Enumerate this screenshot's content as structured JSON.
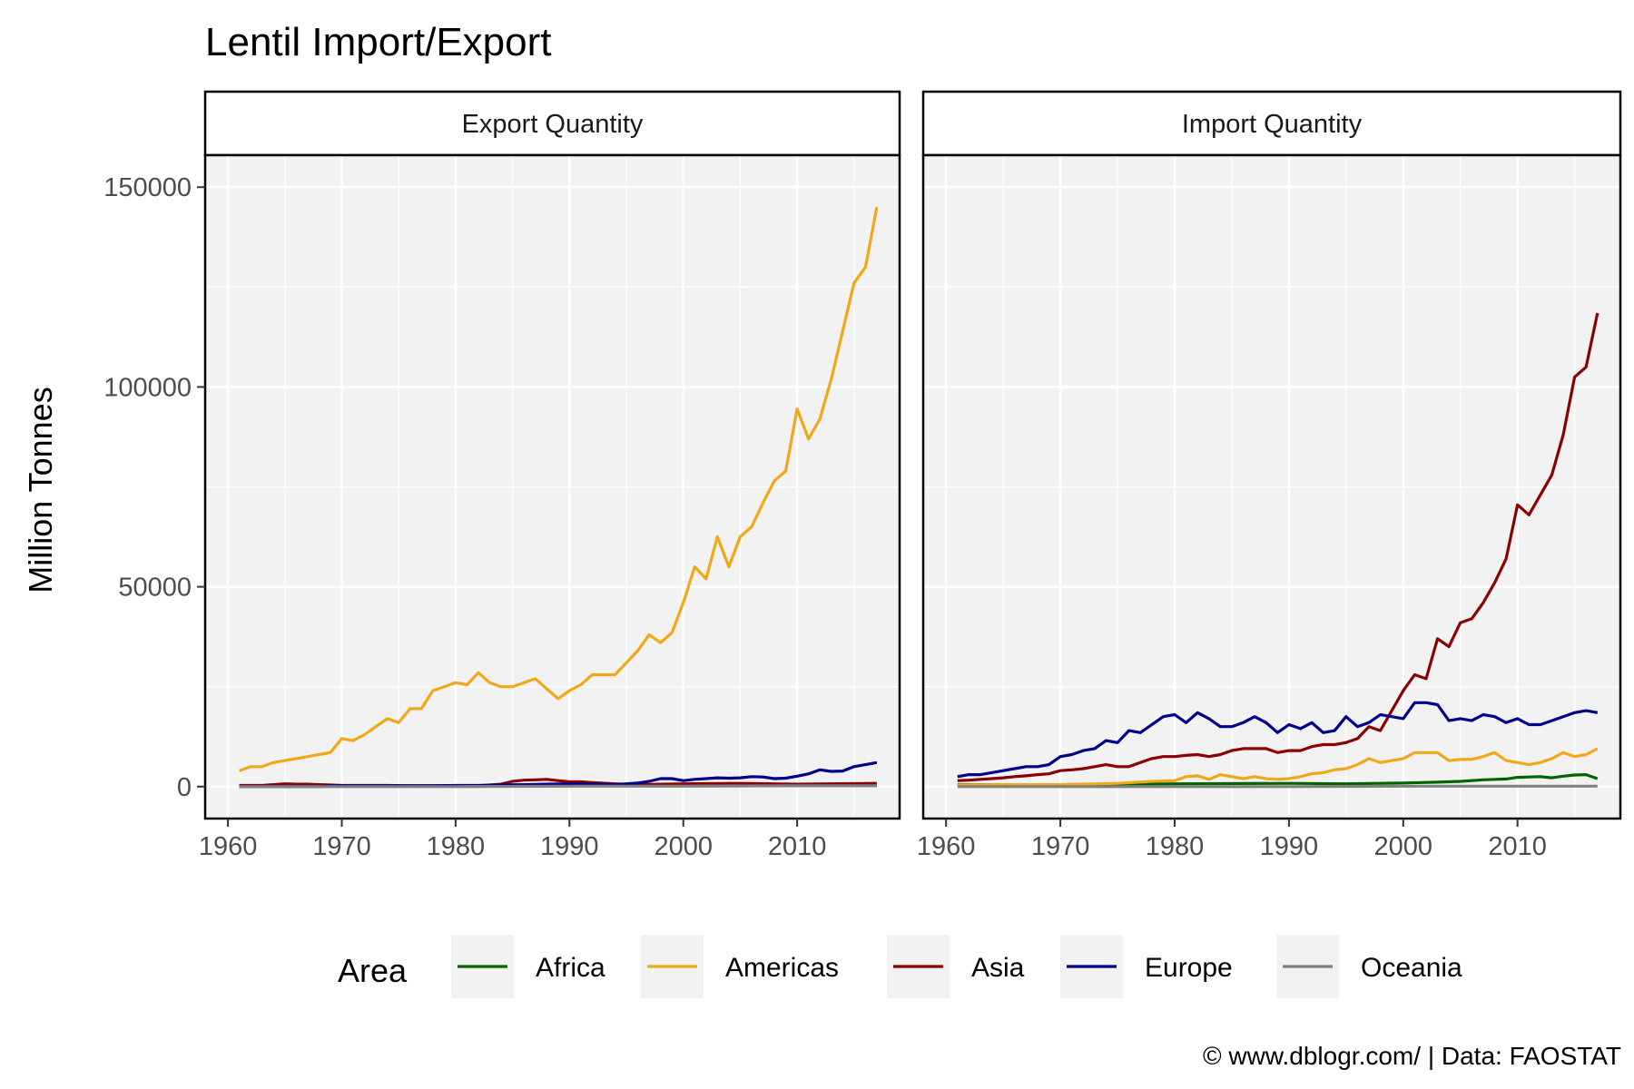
{
  "chart_data": {
    "type": "line",
    "title": "Lentil Import/Export",
    "ylabel": "Million Tonnes",
    "xlabel": "",
    "xlim": [
      1958,
      2019
    ],
    "ylim": [
      -8000,
      158000
    ],
    "x_ticks": [
      1960,
      1970,
      1980,
      1990,
      2000,
      2010
    ],
    "y_ticks": [
      0,
      50000,
      100000,
      150000
    ],
    "grid": true,
    "legend": {
      "title": "Area",
      "placement": "bottom",
      "entries": [
        {
          "name": "Africa",
          "color": "#006400"
        },
        {
          "name": "Americas",
          "color": "#f0a818"
        },
        {
          "name": "Asia",
          "color": "#8b0000"
        },
        {
          "name": "Europe",
          "color": "#00008b"
        },
        {
          "name": "Oceania",
          "color": "#808080"
        }
      ]
    },
    "caption": "© www.dblogr.com/  |  Data: FAOSTAT",
    "panels": [
      {
        "strip": "Export Quantity",
        "series": [
          {
            "name": "Africa",
            "color": "#006400",
            "x": [
              1961,
              1970,
              1980,
              1990,
              2000,
              2010,
              2017
            ],
            "y": [
              100,
              100,
              200,
              200,
              200,
              300,
              300
            ]
          },
          {
            "name": "Americas",
            "color": "#f0a818",
            "x": [
              1961,
              1962,
              1963,
              1964,
              1965,
              1966,
              1967,
              1968,
              1969,
              1970,
              1971,
              1972,
              1973,
              1974,
              1975,
              1976,
              1977,
              1978,
              1979,
              1980,
              1981,
              1982,
              1983,
              1984,
              1985,
              1986,
              1987,
              1988,
              1989,
              1990,
              1991,
              1992,
              1993,
              1994,
              1995,
              1996,
              1997,
              1998,
              1999,
              2000,
              2001,
              2002,
              2003,
              2004,
              2005,
              2006,
              2007,
              2008,
              2009,
              2010,
              2011,
              2012,
              2013,
              2014,
              2015,
              2016,
              2017
            ],
            "y": [
              4000,
              5000,
              5000,
              6000,
              6500,
              7000,
              7500,
              8000,
              8500,
              12000,
              11500,
              13000,
              15000,
              17000,
              16000,
              19500,
              19500,
              24000,
              25000,
              26000,
              25500,
              28500,
              26000,
              25000,
              25000,
              26000,
              27000,
              24500,
              22000,
              24000,
              25500,
              28000,
              28000,
              28000,
              31000,
              34000,
              38000,
              36000,
              38500,
              46000,
              55000,
              52000,
              62500,
              55000,
              62500,
              65000,
              71000,
              76500,
              79000,
              94500,
              87000,
              92000,
              102000,
              114000,
              126000,
              130000,
              145000
            ]
          },
          {
            "name": "Asia",
            "color": "#8b0000",
            "x": [
              1961,
              1962,
              1963,
              1964,
              1965,
              1966,
              1967,
              1968,
              1969,
              1970,
              1972,
              1974,
              1976,
              1978,
              1980,
              1982,
              1984,
              1985,
              1986,
              1987,
              1988,
              1989,
              1990,
              1991,
              1992,
              1994,
              1996,
              2000,
              2005,
              2010,
              2017
            ],
            "y": [
              300,
              300,
              300,
              500,
              700,
              600,
              600,
              500,
              400,
              300,
              300,
              300,
              200,
              200,
              200,
              200,
              600,
              1300,
              1600,
              1700,
              1800,
              1500,
              1200,
              1200,
              1000,
              700,
              500,
              700,
              800,
              600,
              800
            ]
          },
          {
            "name": "Europe",
            "color": "#00008b",
            "x": [
              1961,
              1962,
              1963,
              1964,
              1965,
              1966,
              1967,
              1968,
              1969,
              1970,
              1972,
              1974,
              1976,
              1978,
              1980,
              1982,
              1984,
              1986,
              1988,
              1990,
              1992,
              1994,
              1996,
              1997,
              1998,
              1999,
              2000,
              2001,
              2002,
              2003,
              2004,
              2005,
              2006,
              2007,
              2008,
              2009,
              2010,
              2011,
              2012,
              2013,
              2014,
              2015,
              2016,
              2017
            ],
            "y": [
              0,
              0,
              0,
              0,
              0,
              0,
              0,
              0,
              200,
              200,
              200,
              200,
              200,
              200,
              300,
              300,
              400,
              500,
              600,
              700,
              600,
              500,
              900,
              1300,
              2000,
              2000,
              1500,
              1800,
              2000,
              2200,
              2100,
              2200,
              2500,
              2400,
              2000,
              2100,
              2600,
              3200,
              4200,
              3800,
              3900,
              5000,
              5500,
              6000
            ]
          },
          {
            "name": "Oceania",
            "color": "#808080",
            "x": [
              1961,
              1970,
              1980,
              1990,
              2000,
              2010,
              2017
            ],
            "y": [
              0,
              0,
              0,
              100,
              100,
              200,
              200
            ]
          }
        ]
      },
      {
        "strip": "Import Quantity",
        "series": [
          {
            "name": "Africa",
            "color": "#006400",
            "x": [
              1961,
              1970,
              1980,
              1990,
              1995,
              2000,
              2003,
              2005,
              2007,
              2008,
              2009,
              2010,
              2011,
              2012,
              2013,
              2014,
              2015,
              2016,
              2017
            ],
            "y": [
              500,
              500,
              700,
              800,
              700,
              900,
              1100,
              1300,
              1700,
              1800,
              1900,
              2300,
              2400,
              2500,
              2200,
              2600,
              2900,
              3000,
              2000
            ]
          },
          {
            "name": "Americas",
            "color": "#f0a818",
            "x": [
              1961,
              1965,
              1970,
              1975,
              1978,
              1980,
              1981,
              1982,
              1983,
              1984,
              1985,
              1986,
              1987,
              1988,
              1989,
              1990,
              1991,
              1992,
              1993,
              1994,
              1995,
              1996,
              1997,
              1998,
              1999,
              2000,
              2001,
              2002,
              2003,
              2004,
              2005,
              2006,
              2007,
              2008,
              2009,
              2010,
              2011,
              2012,
              2013,
              2014,
              2015,
              2016,
              2017
            ],
            "y": [
              400,
              500,
              500,
              800,
              1300,
              1500,
              2500,
              2700,
              1800,
              3000,
              2500,
              2000,
              2500,
              2000,
              1800,
              2000,
              2500,
              3200,
              3500,
              4200,
              4500,
              5500,
              7000,
              6000,
              6500,
              7000,
              8500,
              8500,
              8500,
              6500,
              6800,
              6800,
              7500,
              8500,
              6500,
              6000,
              5500,
              6000,
              7000,
              8500,
              7500,
              8000,
              9500
            ]
          },
          {
            "name": "Asia",
            "color": "#8b0000",
            "x": [
              1961,
              1962,
              1963,
              1964,
              1965,
              1966,
              1967,
              1968,
              1969,
              1970,
              1971,
              1972,
              1973,
              1974,
              1975,
              1976,
              1977,
              1978,
              1979,
              1980,
              1981,
              1982,
              1983,
              1984,
              1985,
              1986,
              1987,
              1988,
              1989,
              1990,
              1991,
              1992,
              1993,
              1994,
              1995,
              1996,
              1997,
              1998,
              1999,
              2000,
              2001,
              2002,
              2003,
              2004,
              2005,
              2006,
              2007,
              2008,
              2009,
              2010,
              2011,
              2012,
              2013,
              2014,
              2015,
              2016,
              2017
            ],
            "y": [
              1500,
              1600,
              1800,
              2000,
              2200,
              2500,
              2700,
              3000,
              3200,
              4000,
              4200,
              4500,
              5000,
              5500,
              5000,
              5000,
              6000,
              7000,
              7500,
              7500,
              7800,
              8000,
              7500,
              8000,
              9000,
              9500,
              9500,
              9500,
              8500,
              9000,
              9000,
              10000,
              10500,
              10500,
              11000,
              12000,
              15000,
              14000,
              19000,
              24000,
              28000,
              27000,
              37000,
              35000,
              41000,
              42000,
              46000,
              51000,
              57000,
              70500,
              68000,
              73000,
              78000,
              88000,
              102500,
              105000,
              118500
            ]
          },
          {
            "name": "Europe",
            "color": "#00008b",
            "x": [
              1961,
              1962,
              1963,
              1964,
              1965,
              1966,
              1967,
              1968,
              1969,
              1970,
              1971,
              1972,
              1973,
              1974,
              1975,
              1976,
              1977,
              1978,
              1979,
              1980,
              1981,
              1982,
              1983,
              1984,
              1985,
              1986,
              1987,
              1988,
              1989,
              1990,
              1991,
              1992,
              1993,
              1994,
              1995,
              1996,
              1997,
              1998,
              1999,
              2000,
              2001,
              2002,
              2003,
              2004,
              2005,
              2006,
              2007,
              2008,
              2009,
              2010,
              2011,
              2012,
              2013,
              2014,
              2015,
              2016,
              2017
            ],
            "y": [
              2500,
              3000,
              3000,
              3500,
              4000,
              4500,
              5000,
              5000,
              5500,
              7500,
              8000,
              9000,
              9500,
              11500,
              11000,
              14000,
              13500,
              15500,
              17500,
              18000,
              16000,
              18500,
              17000,
              15000,
              15000,
              16000,
              17500,
              16000,
              13500,
              15500,
              14500,
              16000,
              13500,
              14000,
              17500,
              15000,
              16000,
              18000,
              17500,
              17000,
              21000,
              21000,
              20500,
              16500,
              17000,
              16500,
              18000,
              17500,
              16000,
              17000,
              15500,
              15500,
              16500,
              17500,
              18500,
              19000,
              18500
            ]
          },
          {
            "name": "Oceania",
            "color": "#808080",
            "x": [
              1961,
              1970,
              1980,
              1990,
              2000,
              2010,
              2017
            ],
            "y": [
              0,
              0,
              0,
              0,
              100,
              100,
              100
            ]
          }
        ]
      }
    ]
  }
}
